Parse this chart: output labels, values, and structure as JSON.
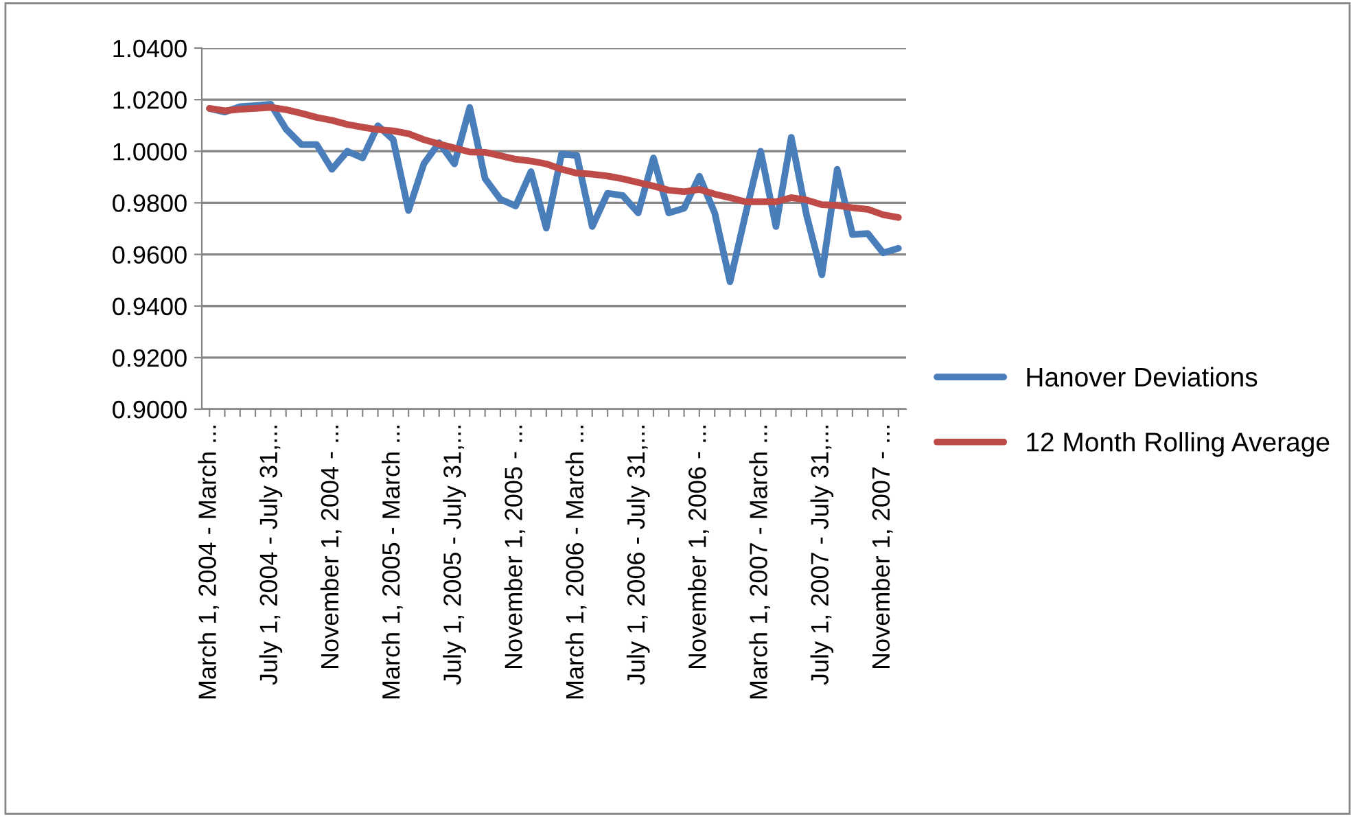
{
  "chart_data": {
    "type": "line",
    "categories": [
      "March 1, 2004 - March ...",
      null,
      null,
      null,
      "July 1, 2004 - July 31,...",
      null,
      null,
      null,
      "November 1, 2004 - ...",
      null,
      null,
      null,
      "March 1, 2005 - March ...",
      null,
      null,
      null,
      "July 1, 2005 - July 31,...",
      null,
      null,
      null,
      "November 1, 2005 - ...",
      null,
      null,
      null,
      "March 1, 2006 - March ...",
      null,
      null,
      null,
      "July 1, 2006 - July 31,...",
      null,
      null,
      null,
      "November 1, 2006 - ...",
      null,
      null,
      null,
      "March 1, 2007 - March ...",
      null,
      null,
      null,
      "July 1, 2007 - July 31,...",
      null,
      null,
      null,
      "November 1, 2007 - ...",
      null
    ],
    "series": [
      {
        "name": "Hanover Deviations",
        "color": "#4a7ebb",
        "values": [
          1.0166,
          1.0152,
          1.0173,
          1.0177,
          1.0182,
          1.0086,
          1.0026,
          1.0026,
          0.993,
          1.0,
          0.9974,
          1.0099,
          1.0045,
          0.977,
          0.9951,
          1.0033,
          0.9951,
          1.017,
          0.9894,
          0.9814,
          0.9788,
          0.9921,
          0.9702,
          0.999,
          0.9983,
          0.9708,
          0.9837,
          0.9828,
          0.9761,
          0.9974,
          0.9761,
          0.9779,
          0.9903,
          0.9761,
          0.9494,
          0.9752,
          1.0,
          0.9708,
          1.0054,
          0.9752,
          0.9521,
          0.993,
          0.9677,
          0.9681,
          0.9606,
          0.9624
        ]
      },
      {
        "name": "12 Month Rolling Average",
        "color": "#be4b48",
        "values": [
          1.0166,
          1.0157,
          1.0163,
          1.0166,
          1.017,
          1.0161,
          1.0147,
          1.0131,
          1.012,
          1.0104,
          1.0093,
          1.0084,
          1.0079,
          1.0068,
          1.0045,
          1.0028,
          1.0013,
          0.9997,
          0.9996,
          0.9983,
          0.9969,
          0.9962,
          0.9951,
          0.993,
          0.9915,
          0.9911,
          0.9904,
          0.9893,
          0.9879,
          0.9865,
          0.9849,
          0.9843,
          0.9852,
          0.9834,
          0.982,
          0.9804,
          0.9804,
          0.9804,
          0.982,
          0.9811,
          0.9793,
          0.979,
          0.9781,
          0.9775,
          0.9754,
          0.9743
        ]
      }
    ],
    "ylim": [
      0.9,
      1.04
    ],
    "yticks": [
      {
        "value": 0.9,
        "label": "0.9000"
      },
      {
        "value": 0.92,
        "label": "0.9200"
      },
      {
        "value": 0.94,
        "label": "0.9400"
      },
      {
        "value": 0.96,
        "label": "0.9600"
      },
      {
        "value": 0.98,
        "label": "0.9800"
      },
      {
        "value": 1.0,
        "label": "1.0000"
      },
      {
        "value": 1.02,
        "label": "1.0200"
      },
      {
        "value": 1.04,
        "label": "1.0400"
      }
    ],
    "grid": "y",
    "legend": "right",
    "marker": "none",
    "line_style": "solid"
  }
}
